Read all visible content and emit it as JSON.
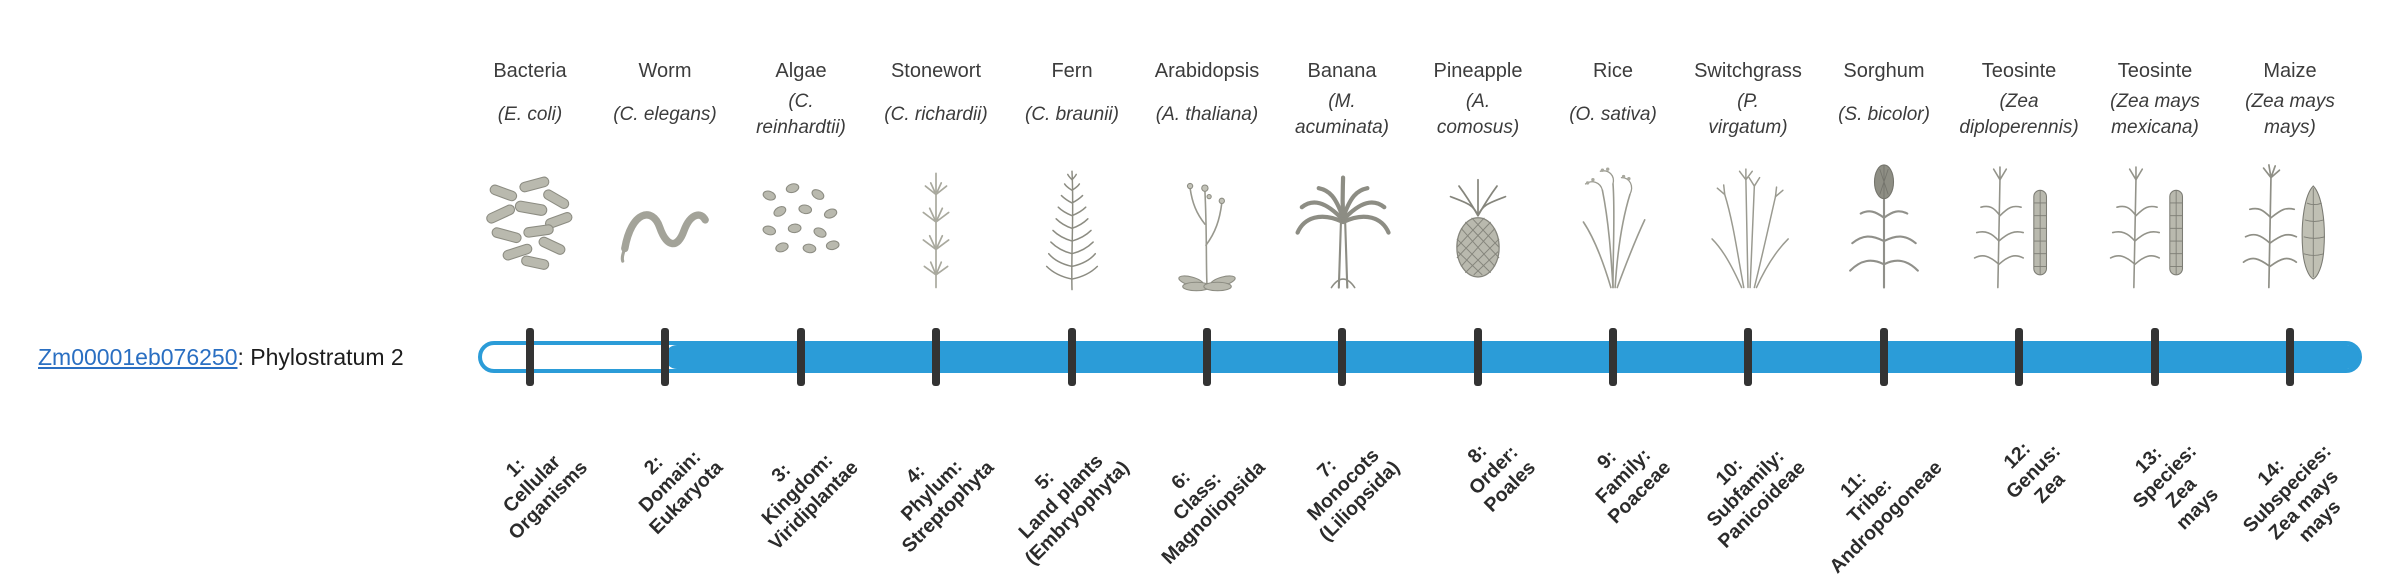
{
  "gene": {
    "id": "Zm00001eb076250",
    "suffix": ": Phylostratum 2",
    "link_color": "#2A6FC2"
  },
  "timeline": {
    "bar_color": "#2B9CD8",
    "tick_color": "#333333",
    "fill_start_stratum": 2,
    "total_strata": 14
  },
  "strata": [
    {
      "number": "1",
      "common_name": "Bacteria",
      "scientific_name": "(E. coli)",
      "icon": "bacteria",
      "rank_label": "1:\nCellular\nOrganisms"
    },
    {
      "number": "2",
      "common_name": "Worm",
      "scientific_name": "(C. elegans)",
      "icon": "worm",
      "rank_label": "2:\nDomain:\nEukaryota"
    },
    {
      "number": "3",
      "common_name": "Algae",
      "scientific_name": "(C.\nreinhardtii)",
      "icon": "algae",
      "rank_label": "3:\nKingdom:\nViridiplantae"
    },
    {
      "number": "4",
      "common_name": "Stonewort",
      "scientific_name": "(C. richardii)",
      "icon": "stonewort",
      "rank_label": "4:\nPhylum:\nStreptophyta"
    },
    {
      "number": "5",
      "common_name": "Fern",
      "scientific_name": "(C. braunii)",
      "icon": "fern",
      "rank_label": "5:\nLand plants\n(Embryophyta)"
    },
    {
      "number": "6",
      "common_name": "Arabidopsis",
      "scientific_name": "(A. thaliana)",
      "icon": "arabidopsis",
      "rank_label": "6:\nClass:\nMagnoliopsida"
    },
    {
      "number": "7",
      "common_name": "Banana",
      "scientific_name": "(M.\nacuminata)",
      "icon": "banana",
      "rank_label": "7:\nMonocots\n(Liliopsida)"
    },
    {
      "number": "8",
      "common_name": "Pineapple",
      "scientific_name": "(A.\ncomosus)",
      "icon": "pineapple",
      "rank_label": "8:\nOrder:\nPoales"
    },
    {
      "number": "9",
      "common_name": "Rice",
      "scientific_name": "(O. sativa)",
      "icon": "rice",
      "rank_label": "9:\nFamily:\nPoaceae"
    },
    {
      "number": "10",
      "common_name": "Switchgrass",
      "scientific_name": "(P.\nvirgatum)",
      "icon": "switchgrass",
      "rank_label": "10:\nSubfamily:\nPanicoideae"
    },
    {
      "number": "11",
      "common_name": "Sorghum",
      "scientific_name": "(S. bicolor)",
      "icon": "sorghum",
      "rank_label": "11:\nTribe:\nAndropogoneae"
    },
    {
      "number": "12",
      "common_name": "Teosinte",
      "scientific_name": "(Zea\ndiploperennis)",
      "icon": "teosinte",
      "rank_label": "12:\nGenus:\nZea"
    },
    {
      "number": "13",
      "common_name": "Teosinte",
      "scientific_name": "(Zea mays\nmexicana)",
      "icon": "teosinte",
      "rank_label": "13:\nSpecies:\nZea\nmays"
    },
    {
      "number": "14",
      "common_name": "Maize",
      "scientific_name": "(Zea mays\nmays)",
      "icon": "maize",
      "rank_label": "14:\nSubspecies:\nZea mays\nmays"
    }
  ]
}
